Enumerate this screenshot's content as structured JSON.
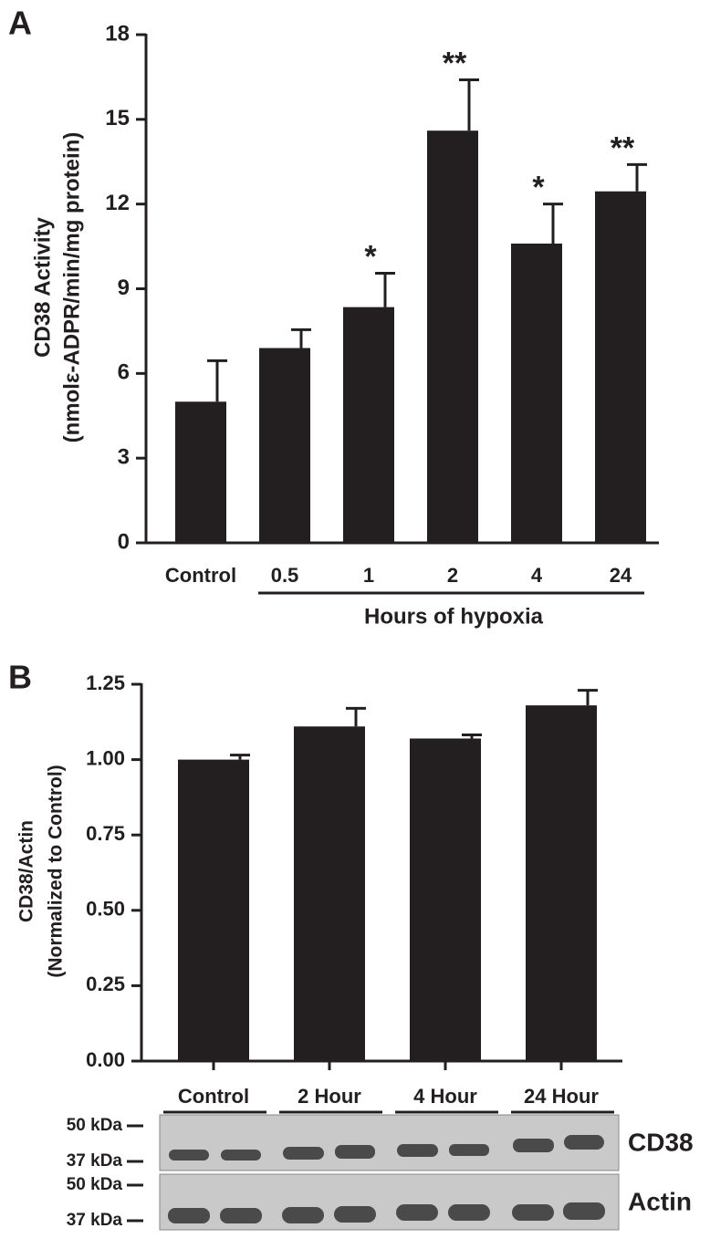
{
  "chart_data": [
    {
      "type": "bar",
      "panel_label": "A",
      "ylabel": [
        "CD38 Activity",
        "(nmolε-ADPR/min/mg protein)"
      ],
      "categories": [
        "Control",
        "0.5",
        "1",
        "2",
        "4",
        "24"
      ],
      "values": [
        5.0,
        6.9,
        8.35,
        14.6,
        10.6,
        12.45
      ],
      "errors": [
        1.45,
        0.65,
        1.2,
        1.8,
        1.4,
        0.95
      ],
      "annotations": [
        null,
        null,
        "*",
        "**",
        "*",
        "**"
      ],
      "xlabel": "Hours of hypoxia",
      "color": "#231f20",
      "ylim": [
        0,
        18
      ],
      "yticks": [
        0,
        3,
        6,
        9,
        12,
        15,
        18
      ]
    },
    {
      "type": "bar",
      "panel_label": "B",
      "ylabel": [
        "CD38/Actin",
        "(Normalized to Control)"
      ],
      "categories": [
        "Control",
        "2 Hour",
        "4 Hour",
        "24 Hour"
      ],
      "values": [
        1.0,
        1.11,
        1.07,
        1.18
      ],
      "errors": [
        0.015,
        0.06,
        0.012,
        0.05
      ],
      "color": "#231f20",
      "ylim": [
        0,
        1.25
      ],
      "yticks": [
        {
          "value": 0,
          "label": "0.00"
        },
        {
          "value": 0.25,
          "label": "0.25"
        },
        {
          "value": 0.5,
          "label": "0.50"
        },
        {
          "value": 0.75,
          "label": "0.75"
        },
        {
          "value": 1,
          "label": "1.00"
        },
        {
          "value": 1.25,
          "label": "1.25"
        }
      ],
      "blot": [
        {
          "name": "CD38",
          "markers": [
            "50 kDa",
            "37 kDa"
          ]
        },
        {
          "name": "Actin",
          "markers": [
            "50 kDa",
            "37 kDa"
          ]
        }
      ]
    }
  ]
}
